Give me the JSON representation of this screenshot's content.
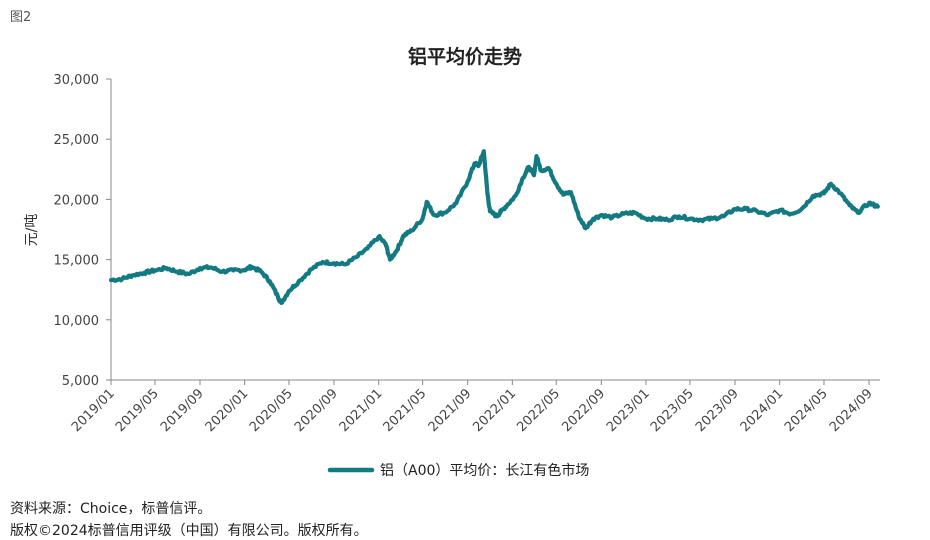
{
  "figure_label": "图2",
  "footer": {
    "source": "资料来源：Choice，标普信评。",
    "copyright": "版权©2024标普信用评级（中国）有限公司。版权所有。"
  },
  "chart_data": {
    "type": "line",
    "title": "铝平均价走势",
    "ylabel": "元/吨",
    "xlabel": "",
    "ylim": [
      5000,
      30000
    ],
    "yticks": [
      5000,
      10000,
      15000,
      20000,
      25000,
      30000
    ],
    "ytick_labels": [
      "5,000",
      "10,000",
      "15,000",
      "20,000",
      "25,000",
      "30,000"
    ],
    "xlim": [
      "2019/01",
      "2024/10"
    ],
    "xtick_labels": [
      "2019/01",
      "2019/05",
      "2019/09",
      "2020/01",
      "2020/05",
      "2020/09",
      "2021/01",
      "2021/05",
      "2021/09",
      "2022/01",
      "2022/05",
      "2022/09",
      "2023/01",
      "2023/05",
      "2023/09",
      "2024/01",
      "2024/05",
      "2024/09"
    ],
    "grid": false,
    "legend_position": "bottom",
    "series_color": "#137a82",
    "series": [
      {
        "name": "铝（A00）平均价：长江有色市场",
        "points": [
          [
            "2019/01/01",
            13300
          ],
          [
            "2019/02/01",
            13400
          ],
          [
            "2019/03/01",
            13700
          ],
          [
            "2019/04/01",
            13900
          ],
          [
            "2019/05/01",
            14100
          ],
          [
            "2019/06/01",
            14300
          ],
          [
            "2019/07/01",
            14000
          ],
          [
            "2019/08/01",
            13800
          ],
          [
            "2019/09/01",
            14300
          ],
          [
            "2019/10/01",
            14350
          ],
          [
            "2019/11/01",
            14000
          ],
          [
            "2019/12/01",
            14100
          ],
          [
            "2020/01/01",
            14150
          ],
          [
            "2020/01/20",
            14400
          ],
          [
            "2020/02/15",
            14000
          ],
          [
            "2020/03/10",
            13200
          ],
          [
            "2020/04/01",
            11900
          ],
          [
            "2020/04/10",
            11400
          ],
          [
            "2020/05/01",
            12400
          ],
          [
            "2020/06/01",
            13300
          ],
          [
            "2020/07/01",
            14200
          ],
          [
            "2020/08/01",
            14800
          ],
          [
            "2020/09/01",
            14700
          ],
          [
            "2020/10/01",
            14600
          ],
          [
            "2020/11/01",
            15200
          ],
          [
            "2020/12/01",
            15900
          ],
          [
            "2021/01/01",
            16900
          ],
          [
            "2021/01/20",
            16300
          ],
          [
            "2021/02/01",
            15000
          ],
          [
            "2021/02/20",
            15800
          ],
          [
            "2021/03/10",
            17000
          ],
          [
            "2021/04/01",
            17400
          ],
          [
            "2021/05/01",
            18400
          ],
          [
            "2021/05/12",
            19800
          ],
          [
            "2021/06/01",
            18700
          ],
          [
            "2021/07/01",
            18900
          ],
          [
            "2021/08/01",
            19700
          ],
          [
            "2021/09/01",
            21500
          ],
          [
            "2021/09/20",
            23000
          ],
          [
            "2021/10/01",
            22800
          ],
          [
            "2021/10/15",
            24000
          ],
          [
            "2021/10/25",
            20500
          ],
          [
            "2021/11/01",
            19000
          ],
          [
            "2021/11/20",
            18600
          ],
          [
            "2021/12/01",
            19000
          ],
          [
            "2021/12/20",
            19600
          ],
          [
            "2022/01/10",
            20300
          ],
          [
            "2022/01/30",
            21800
          ],
          [
            "2022/02/15",
            22700
          ],
          [
            "2022/03/01",
            22000
          ],
          [
            "2022/03/08",
            23600
          ],
          [
            "2022/03/20",
            22400
          ],
          [
            "2022/04/10",
            22600
          ],
          [
            "2022/05/01",
            21300
          ],
          [
            "2022/05/20",
            20400
          ],
          [
            "2022/06/10",
            20600
          ],
          [
            "2022/07/01",
            18600
          ],
          [
            "2022/07/20",
            17600
          ],
          [
            "2022/08/10",
            18400
          ],
          [
            "2022/09/01",
            18700
          ],
          [
            "2022/10/01",
            18500
          ],
          [
            "2022/11/01",
            18800
          ],
          [
            "2022/12/01",
            18900
          ],
          [
            "2023/01/01",
            18400
          ],
          [
            "2023/02/01",
            18400
          ],
          [
            "2023/03/01",
            18300
          ],
          [
            "2023/04/01",
            18600
          ],
          [
            "2023/05/01",
            18400
          ],
          [
            "2023/06/01",
            18300
          ],
          [
            "2023/07/01",
            18400
          ],
          [
            "2023/08/01",
            18600
          ],
          [
            "2023/09/01",
            19200
          ],
          [
            "2023/10/01",
            19200
          ],
          [
            "2023/11/01",
            19000
          ],
          [
            "2023/12/01",
            18700
          ],
          [
            "2024/01/01",
            19100
          ],
          [
            "2024/02/01",
            18800
          ],
          [
            "2024/03/01",
            19200
          ],
          [
            "2024/04/01",
            20300
          ],
          [
            "2024/05/01",
            20500
          ],
          [
            "2024/05/20",
            21300
          ],
          [
            "2024/06/15",
            20500
          ],
          [
            "2024/07/10",
            19500
          ],
          [
            "2024/08/01",
            18900
          ],
          [
            "2024/09/01",
            19700
          ],
          [
            "2024/09/25",
            19400
          ]
        ]
      }
    ]
  }
}
